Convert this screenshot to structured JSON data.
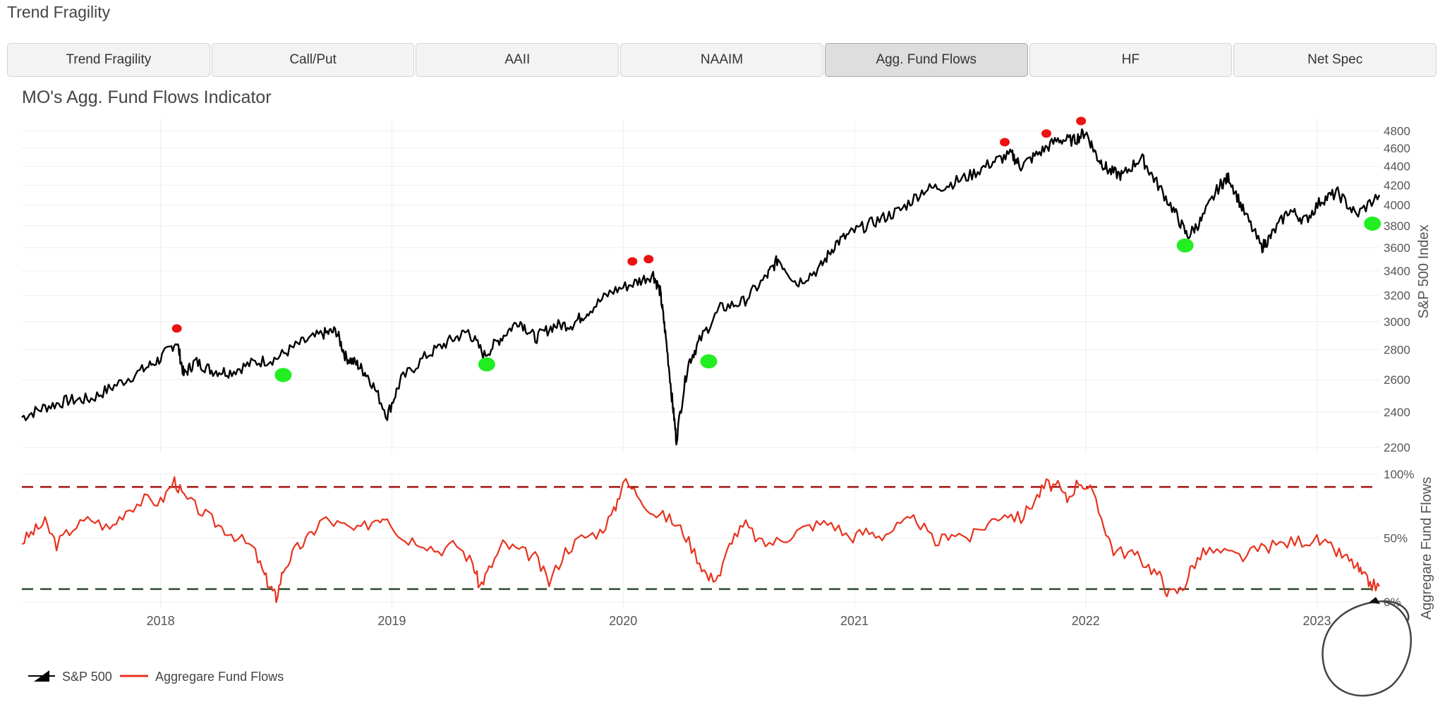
{
  "app": {
    "title": "Trend Fragility"
  },
  "tabs": [
    {
      "label": "Trend Fragility",
      "active": false
    },
    {
      "label": "Call/Put",
      "active": false
    },
    {
      "label": "AAII",
      "active": false
    },
    {
      "label": "NAAIM",
      "active": false
    },
    {
      "label": "Agg. Fund Flows",
      "active": true
    },
    {
      "label": "HF",
      "active": false
    },
    {
      "label": "Net Spec",
      "active": false
    }
  ],
  "chart_data": {
    "type": "line",
    "title": "MO's Agg. Fund Flows Indicator",
    "x_ticks": [
      "2018",
      "2019",
      "2020",
      "2021",
      "2022",
      "2023"
    ],
    "x_range": [
      2017.4,
      2023.27
    ],
    "upper_panel": {
      "ylabel": "S&P 500 Index",
      "scale": "log",
      "ylim": [
        2170,
        4950
      ],
      "y_ticks": [
        2200,
        2400,
        2600,
        2800,
        3000,
        3200,
        3400,
        3600,
        3800,
        4000,
        4200,
        4400,
        4600,
        4800
      ],
      "grid": true,
      "series": [
        {
          "name": "S&P 500",
          "style": "black candlestick-like line",
          "points": [
            [
              2017.4,
              2370
            ],
            [
              2017.5,
              2430
            ],
            [
              2017.6,
              2470
            ],
            [
              2017.7,
              2480
            ],
            [
              2017.8,
              2560
            ],
            [
              2017.92,
              2660
            ],
            [
              2018.0,
              2740
            ],
            [
              2018.07,
              2860
            ],
            [
              2018.1,
              2630
            ],
            [
              2018.15,
              2720
            ],
            [
              2018.22,
              2660
            ],
            [
              2018.3,
              2650
            ],
            [
              2018.4,
              2710
            ],
            [
              2018.5,
              2740
            ],
            [
              2018.6,
              2840
            ],
            [
              2018.7,
              2910
            ],
            [
              2018.76,
              2930
            ],
            [
              2018.8,
              2750
            ],
            [
              2018.85,
              2700
            ],
            [
              2018.9,
              2620
            ],
            [
              2018.98,
              2380
            ],
            [
              2019.04,
              2600
            ],
            [
              2019.15,
              2760
            ],
            [
              2019.25,
              2860
            ],
            [
              2019.33,
              2930
            ],
            [
              2019.4,
              2760
            ],
            [
              2019.47,
              2880
            ],
            [
              2019.55,
              3010
            ],
            [
              2019.62,
              2880
            ],
            [
              2019.7,
              2970
            ],
            [
              2019.78,
              2980
            ],
            [
              2019.85,
              3080
            ],
            [
              2019.95,
              3230
            ],
            [
              2020.05,
              3300
            ],
            [
              2020.13,
              3370
            ],
            [
              2020.16,
              3230
            ],
            [
              2020.18,
              2950
            ],
            [
              2020.21,
              2500
            ],
            [
              2020.23,
              2240
            ],
            [
              2020.28,
              2700
            ],
            [
              2020.33,
              2860
            ],
            [
              2020.42,
              3100
            ],
            [
              2020.52,
              3150
            ],
            [
              2020.62,
              3350
            ],
            [
              2020.67,
              3500
            ],
            [
              2020.75,
              3300
            ],
            [
              2020.85,
              3420
            ],
            [
              2020.92,
              3640
            ],
            [
              2021.0,
              3750
            ],
            [
              2021.1,
              3850
            ],
            [
              2021.2,
              3950
            ],
            [
              2021.3,
              4150
            ],
            [
              2021.4,
              4200
            ],
            [
              2021.5,
              4300
            ],
            [
              2021.6,
              4450
            ],
            [
              2021.68,
              4530
            ],
            [
              2021.72,
              4400
            ],
            [
              2021.8,
              4550
            ],
            [
              2021.88,
              4700
            ],
            [
              2021.95,
              4690
            ],
            [
              2022.0,
              4790
            ],
            [
              2022.05,
              4500
            ],
            [
              2022.1,
              4350
            ],
            [
              2022.16,
              4300
            ],
            [
              2022.24,
              4500
            ],
            [
              2022.3,
              4250
            ],
            [
              2022.38,
              3950
            ],
            [
              2022.44,
              3700
            ],
            [
              2022.5,
              3850
            ],
            [
              2022.58,
              4200
            ],
            [
              2022.62,
              4280
            ],
            [
              2022.68,
              3950
            ],
            [
              2022.76,
              3600
            ],
            [
              2022.8,
              3700
            ],
            [
              2022.88,
              3950
            ],
            [
              2022.95,
              3850
            ],
            [
              2023.02,
              4050
            ],
            [
              2023.09,
              4120
            ],
            [
              2023.17,
              3900
            ],
            [
              2023.27,
              4100
            ]
          ]
        }
      ],
      "red_markers": [
        [
          2018.07,
          2950
        ],
        [
          2020.04,
          3480
        ],
        [
          2020.11,
          3500
        ],
        [
          2021.65,
          4670
        ],
        [
          2021.83,
          4770
        ],
        [
          2021.98,
          4920
        ]
      ],
      "green_markers": [
        [
          2018.53,
          2630
        ],
        [
          2019.41,
          2700
        ],
        [
          2020.37,
          2720
        ],
        [
          2022.43,
          3620
        ],
        [
          2023.24,
          3820
        ]
      ]
    },
    "lower_panel": {
      "ylabel": "Aggregare Fund Flows",
      "ylim": [
        -5,
        100
      ],
      "y_ticks": [
        "0%",
        "50%",
        "100%"
      ],
      "y_tick_values": [
        0,
        50,
        100
      ],
      "upper_threshold": 90,
      "lower_threshold": 10,
      "series": [
        {
          "name": "Aggregare Fund Flows",
          "color": "#e8331f",
          "points": [
            [
              2017.4,
              47
            ],
            [
              2017.45,
              55
            ],
            [
              2017.5,
              62
            ],
            [
              2017.55,
              45
            ],
            [
              2017.62,
              58
            ],
            [
              2017.7,
              65
            ],
            [
              2017.78,
              57
            ],
            [
              2017.85,
              72
            ],
            [
              2017.93,
              80
            ],
            [
              2018.0,
              78
            ],
            [
              2018.06,
              95
            ],
            [
              2018.1,
              82
            ],
            [
              2018.18,
              70
            ],
            [
              2018.25,
              60
            ],
            [
              2018.32,
              52
            ],
            [
              2018.4,
              42
            ],
            [
              2018.45,
              20
            ],
            [
              2018.48,
              10
            ],
            [
              2018.5,
              3
            ],
            [
              2018.53,
              25
            ],
            [
              2018.58,
              40
            ],
            [
              2018.64,
              50
            ],
            [
              2018.7,
              65
            ],
            [
              2018.78,
              60
            ],
            [
              2018.85,
              55
            ],
            [
              2018.93,
              65
            ],
            [
              2018.98,
              68
            ],
            [
              2019.04,
              50
            ],
            [
              2019.12,
              48
            ],
            [
              2019.2,
              40
            ],
            [
              2019.28,
              45
            ],
            [
              2019.35,
              30
            ],
            [
              2019.38,
              12
            ],
            [
              2019.42,
              25
            ],
            [
              2019.48,
              45
            ],
            [
              2019.55,
              40
            ],
            [
              2019.62,
              35
            ],
            [
              2019.68,
              15
            ],
            [
              2019.75,
              40
            ],
            [
              2019.82,
              50
            ],
            [
              2019.9,
              55
            ],
            [
              2019.96,
              70
            ],
            [
              2020.0,
              95
            ],
            [
              2020.06,
              85
            ],
            [
              2020.13,
              70
            ],
            [
              2020.2,
              65
            ],
            [
              2020.26,
              55
            ],
            [
              2020.32,
              35
            ],
            [
              2020.37,
              18
            ],
            [
              2020.42,
              22
            ],
            [
              2020.47,
              50
            ],
            [
              2020.53,
              60
            ],
            [
              2020.6,
              45
            ],
            [
              2020.68,
              48
            ],
            [
              2020.75,
              55
            ],
            [
              2020.82,
              60
            ],
            [
              2020.9,
              62
            ],
            [
              2020.98,
              50
            ],
            [
              2021.05,
              55
            ],
            [
              2021.12,
              52
            ],
            [
              2021.2,
              60
            ],
            [
              2021.27,
              65
            ],
            [
              2021.35,
              45
            ],
            [
              2021.42,
              55
            ],
            [
              2021.5,
              50
            ],
            [
              2021.58,
              62
            ],
            [
              2021.65,
              70
            ],
            [
              2021.72,
              65
            ],
            [
              2021.78,
              80
            ],
            [
              2021.83,
              92
            ],
            [
              2021.88,
              90
            ],
            [
              2021.92,
              80
            ],
            [
              2021.97,
              95
            ],
            [
              2022.02,
              88
            ],
            [
              2022.08,
              60
            ],
            [
              2022.12,
              40
            ],
            [
              2022.2,
              38
            ],
            [
              2022.26,
              30
            ],
            [
              2022.32,
              20
            ],
            [
              2022.36,
              6
            ],
            [
              2022.42,
              10
            ],
            [
              2022.46,
              28
            ],
            [
              2022.52,
              40
            ],
            [
              2022.6,
              38
            ],
            [
              2022.68,
              35
            ],
            [
              2022.76,
              42
            ],
            [
              2022.84,
              45
            ],
            [
              2022.92,
              48
            ],
            [
              2023.0,
              48
            ],
            [
              2023.06,
              42
            ],
            [
              2023.12,
              35
            ],
            [
              2023.17,
              28
            ],
            [
              2023.2,
              20
            ],
            [
              2023.23,
              14
            ],
            [
              2023.27,
              12
            ]
          ]
        }
      ]
    },
    "legend": {
      "placement": "bottom-left",
      "items": [
        {
          "label": "S&P 500",
          "color": "#000000"
        },
        {
          "label": "Aggregare Fund Flows",
          "color": "#e8331f"
        }
      ]
    },
    "colors": {
      "price_line": "#000000",
      "peak_marker": "#ee1111",
      "trough_marker": "#22ee22",
      "flows_line": "#e8331f",
      "upper_threshold_line": "#a01010",
      "lower_threshold_line": "#2c4a2c",
      "grid": "#eeeeee"
    }
  }
}
